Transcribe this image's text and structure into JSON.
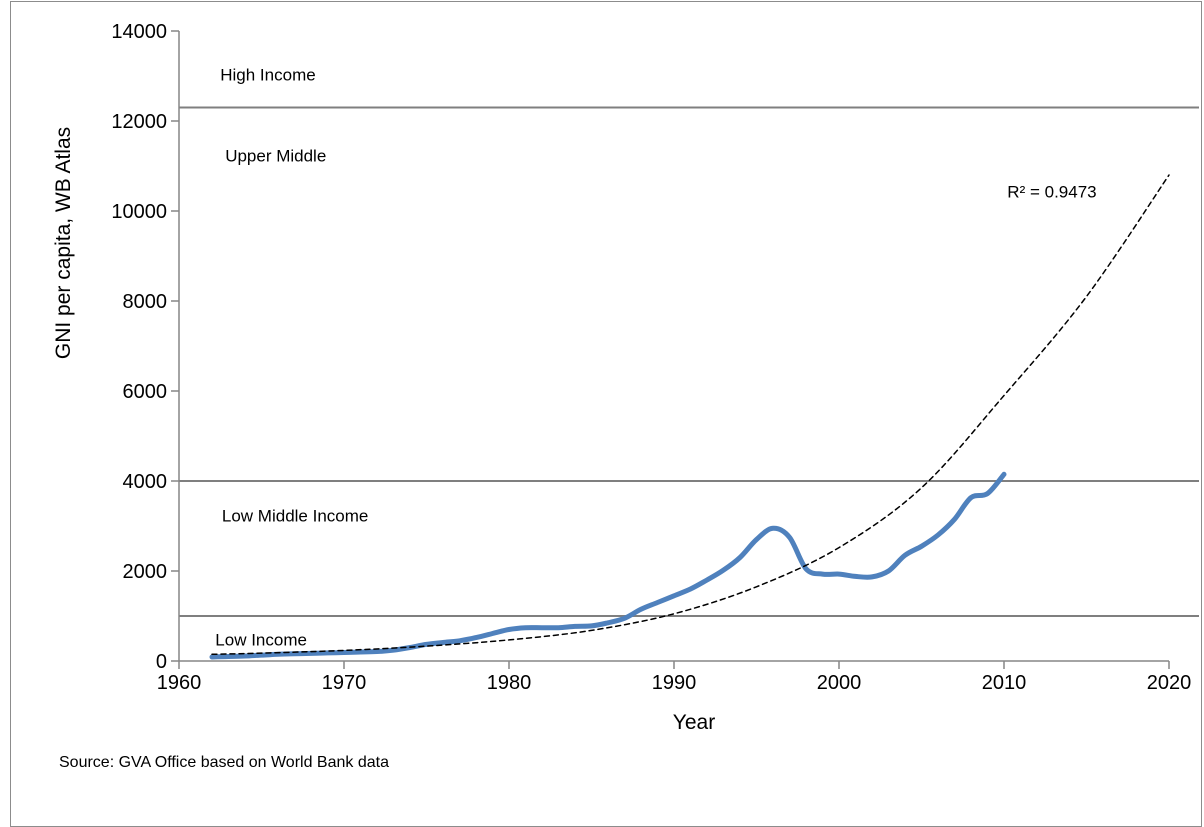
{
  "chart_data": {
    "type": "line",
    "title": "",
    "xlabel": "Year",
    "ylabel": "GNI per capita, WB Atlas",
    "xlim": [
      1960,
      2020
    ],
    "ylim": [
      0,
      14000
    ],
    "x_ticks": [
      "1960",
      "1970",
      "1980",
      "1990",
      "2000",
      "2010",
      "2020"
    ],
    "y_ticks": [
      "0",
      "2000",
      "4000",
      "6000",
      "8000",
      "10000",
      "12000",
      "14000"
    ],
    "grid": false,
    "legend": "none",
    "series": [
      {
        "color": "#4f81bd",
        "x": [
          1962,
          1963,
          1964,
          1965,
          1966,
          1967,
          1968,
          1969,
          1970,
          1971,
          1972,
          1973,
          1974,
          1975,
          1976,
          1977,
          1978,
          1979,
          1980,
          1981,
          1982,
          1983,
          1984,
          1985,
          1986,
          1987,
          1988,
          1989,
          1990,
          1991,
          1992,
          1993,
          1994,
          1995,
          1996,
          1997,
          1998,
          1999,
          2000,
          2001,
          2002,
          2003,
          2004,
          2005,
          2006,
          2007,
          2008,
          2009,
          2010
        ],
        "y": [
          90,
          100,
          110,
          130,
          150,
          160,
          170,
          180,
          190,
          200,
          210,
          240,
          300,
          370,
          410,
          450,
          520,
          610,
          700,
          740,
          740,
          740,
          770,
          780,
          850,
          950,
          1150,
          1300,
          1450,
          1600,
          1800,
          2020,
          2300,
          2700,
          2950,
          2750,
          2050,
          1930,
          1930,
          1880,
          1870,
          2000,
          2350,
          2550,
          2800,
          3150,
          3630,
          3720,
          4150
        ]
      },
      {
        "type": "trendline",
        "style": "dashed",
        "color": "#000000",
        "x": [
          1962,
          1965,
          1970,
          1975,
          1980,
          1985,
          1990,
          1995,
          2000,
          2005,
          2010,
          2015,
          2020
        ],
        "y": [
          150,
          175,
          235,
          330,
          470,
          680,
          1050,
          1650,
          2520,
          3850,
          5900,
          8100,
          10800
        ]
      }
    ],
    "reference_lines": [
      {
        "y": 1000,
        "color": "#7f7f7f"
      },
      {
        "y": 4000,
        "color": "#7f7f7f"
      },
      {
        "y": 12300,
        "color": "#7f7f7f"
      }
    ],
    "annotations": [
      {
        "text": "High Income",
        "x": 1962.5,
        "y": 12900
      },
      {
        "text": "Upper Middle",
        "x": 1962.8,
        "y": 11100
      },
      {
        "text": "R² = 0.9473",
        "x": 2010.2,
        "y": 10300
      },
      {
        "text": "Low Middle Income",
        "x": 1962.6,
        "y": 3100
      },
      {
        "text": "Low Income",
        "x": 1962.2,
        "y": 350
      }
    ]
  },
  "source_note": "Source: GVA Office based on World Bank data"
}
